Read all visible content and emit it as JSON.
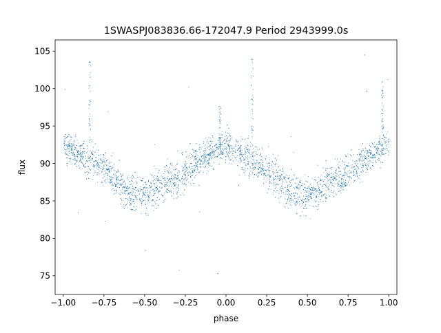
{
  "chart_data": {
    "type": "scatter",
    "title": "1SWASPJ083836.66-172047.9 Period 2943999.0s",
    "xlabel": "phase",
    "ylabel": "flux",
    "xlim": [
      -1.05,
      1.05
    ],
    "ylim": [
      72.5,
      106.5
    ],
    "xticks": [
      -1.0,
      -0.75,
      -0.5,
      -0.25,
      0.0,
      0.25,
      0.5,
      0.75,
      1.0
    ],
    "xtick_labels": [
      "−1.00",
      "−0.75",
      "−0.50",
      "−0.25",
      "0.00",
      "0.25",
      "0.50",
      "0.75",
      "1.00"
    ],
    "yticks": [
      75,
      80,
      85,
      90,
      95,
      100,
      105
    ],
    "ytick_labels": [
      "75",
      "80",
      "85",
      "90",
      "95",
      "100",
      "105"
    ],
    "grid": false,
    "legend": "none",
    "marker_color": "#1f77b4",
    "series": [
      {
        "phase": [
          -1.0,
          -0.95,
          -0.9,
          -0.85,
          -0.8,
          -0.75,
          -0.7,
          -0.65,
          -0.6,
          -0.55,
          -0.5,
          -0.45,
          -0.4,
          -0.35,
          -0.3,
          -0.25,
          -0.2,
          -0.15,
          -0.1,
          -0.05,
          0.0,
          0.05,
          0.1,
          0.15,
          0.2,
          0.25,
          0.3,
          0.35,
          0.4,
          0.45,
          0.5,
          0.55,
          0.6,
          0.65,
          0.7,
          0.75,
          0.8,
          0.85,
          0.9,
          0.95,
          1.0
        ],
        "flux_mean": [
          92.5,
          92.0,
          91.2,
          90.5,
          90.0,
          89.3,
          88.3,
          87.3,
          86.2,
          85.6,
          85.8,
          86.4,
          87.0,
          87.7,
          88.3,
          89.0,
          89.8,
          90.5,
          91.3,
          92.0,
          92.3,
          92.0,
          91.2,
          90.5,
          90.0,
          89.3,
          88.3,
          87.3,
          86.2,
          85.6,
          85.8,
          86.4,
          87.0,
          87.7,
          88.3,
          89.0,
          89.8,
          90.5,
          91.3,
          92.0,
          92.5
        ],
        "flux_spread": [
          1.8,
          1.9,
          2.0,
          2.2,
          2.3,
          2.4,
          2.5,
          2.6,
          2.5,
          2.5,
          2.5,
          2.5,
          2.5,
          2.6,
          2.6,
          2.6,
          2.5,
          2.4,
          2.2,
          2.0,
          1.9,
          2.0,
          2.2,
          2.4,
          2.5,
          2.6,
          2.6,
          2.6,
          2.5,
          2.5,
          2.5,
          2.5,
          2.5,
          2.6,
          2.6,
          2.6,
          2.5,
          2.4,
          2.2,
          2.0,
          1.8
        ]
      }
    ],
    "spikes": [
      {
        "phase": -0.84,
        "flux_max": 104.0
      },
      {
        "phase": 0.16,
        "flux_max": 104.0
      },
      {
        "phase": 0.96,
        "flux_max": 101.0
      },
      {
        "phase": -0.04,
        "flux_max": 98.0
      }
    ]
  }
}
